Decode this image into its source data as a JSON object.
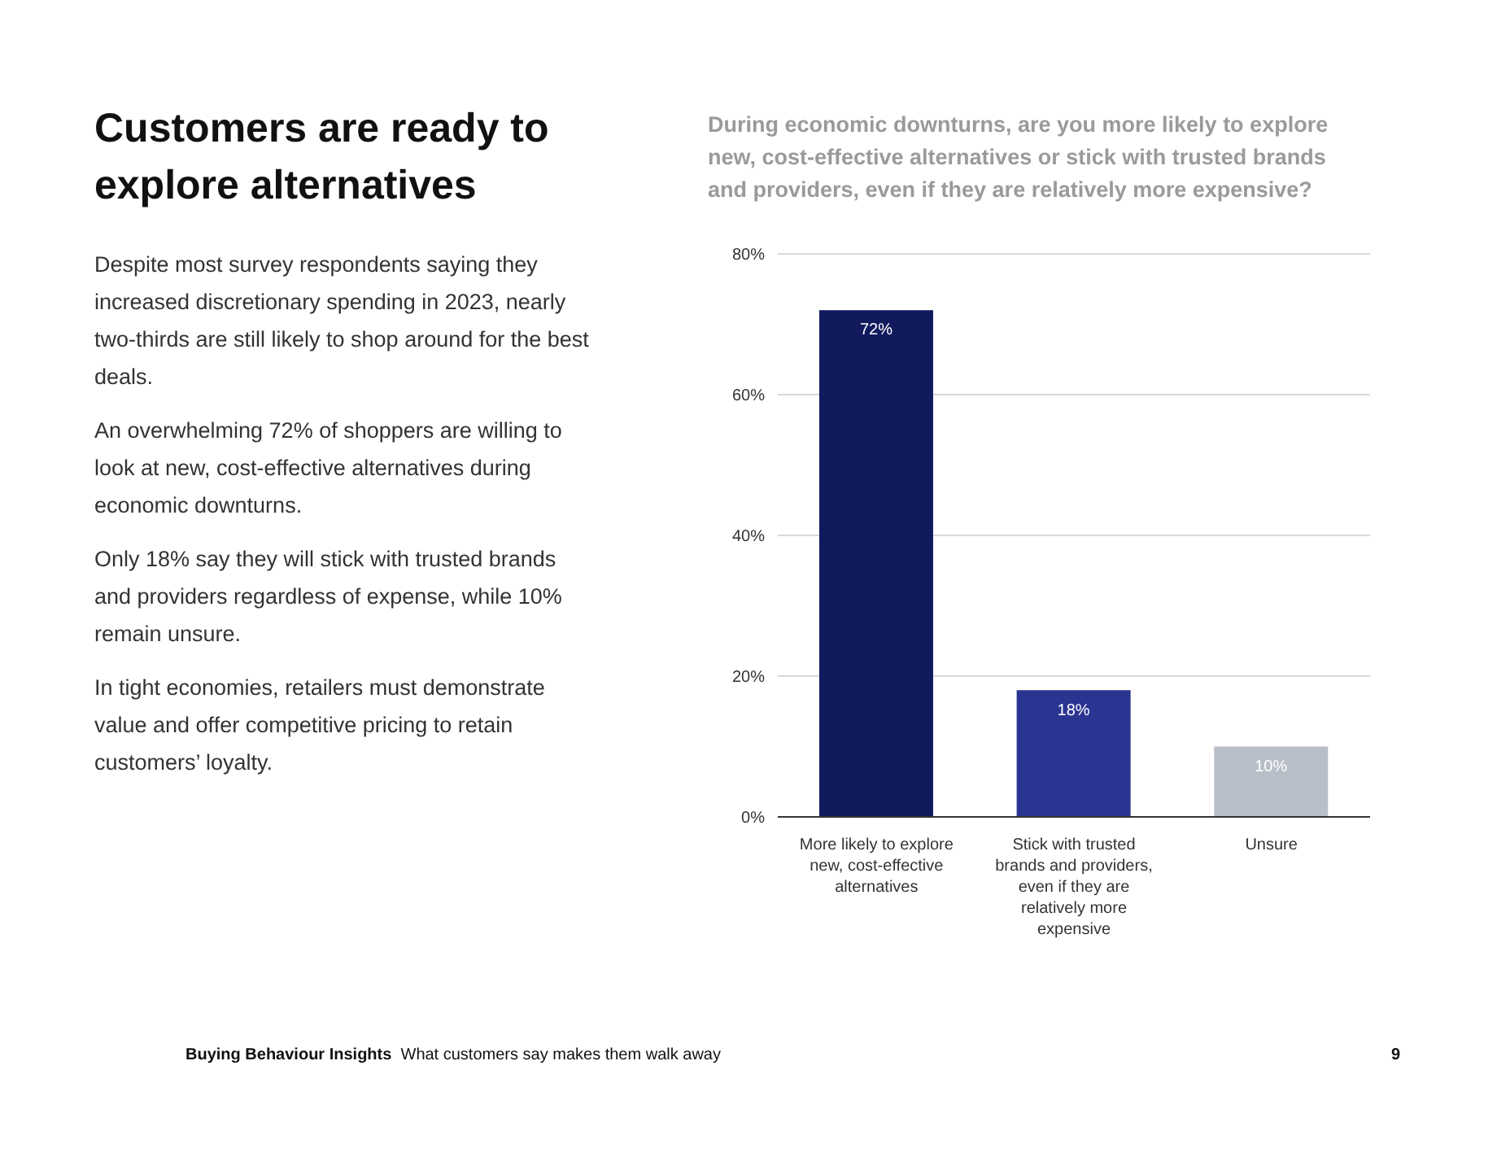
{
  "chart_data": {
    "type": "bar",
    "title": "Customers are ready to explore alternatives",
    "subtitle": "During economic downturns, are you more likely to explore new, cost-effective alternatives or stick with trusted brands and providers, even if they are relatively more expensive?",
    "annotations": [
      "Despite most survey respondents saying they increased discretionary spending in 2023, nearly two-thirds are still likely to shop around for the best deals.",
      "An overwhelming 72% of shoppers are willing to look at new, cost-effective alternatives during economic downturns.",
      "Only 18% say they will stick with trusted brands and providers regardless of expense, while 10% remain unsure.",
      "In tight economies, retailers must demonstrate value and offer competitive pricing to retain customers’ loyalty.",
      "Buying Behaviour Insights",
      "What customers say makes them walk away",
      "9"
    ],
    "categories": [
      "More likely to explore new, cost-effective alternatives",
      "Stick with trusted brands and providers, even if they are relatively more expensive",
      "Unsure"
    ],
    "values": [
      72,
      18,
      10
    ],
    "colors": [
      "#121a5e",
      "#2a3592",
      "#b8bfc9"
    ],
    "value_labels": [
      "72%",
      "18%",
      "10%"
    ],
    "ylim": [
      0,
      80
    ],
    "yticks": [
      {
        "value": 0,
        "label": "0%"
      },
      {
        "value": 20,
        "label": "20%"
      },
      {
        "value": 40,
        "label": "40%"
      },
      {
        "value": 60,
        "label": "60%"
      },
      {
        "value": 80,
        "label": "80%"
      }
    ],
    "grid": "y",
    "legend": false
  }
}
